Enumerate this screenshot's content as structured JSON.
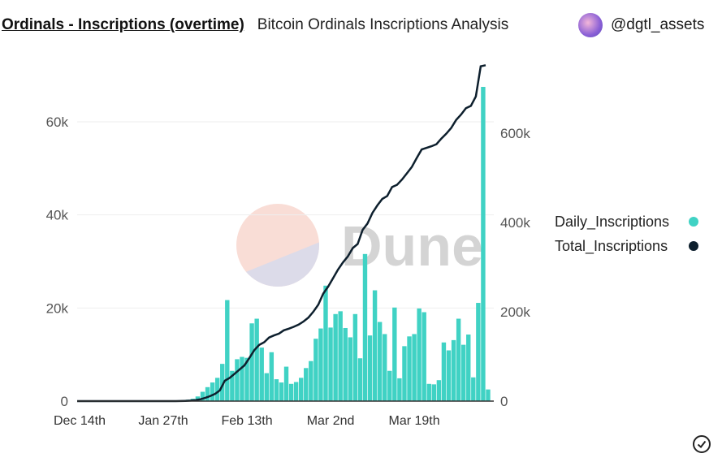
{
  "header": {
    "title": "Ordinals - Inscriptions (overtime)",
    "subtitle": "Bitcoin Ordinals Inscriptions Analysis",
    "author": "@dgtl_assets"
  },
  "watermark": "Dune",
  "colors": {
    "daily": "#40d2c4",
    "total": "#0d1f2d",
    "grid": "#eeeeee",
    "axis_text": "#555555"
  },
  "icons": {
    "done": "check-circle-icon"
  },
  "chart_data": {
    "type": "bar+line",
    "x_tick_labels": [
      {
        "label": "Dec 14th",
        "index": 0
      },
      {
        "label": "Jan 27th",
        "index": 17
      },
      {
        "label": "Feb 13th",
        "index": 34
      },
      {
        "label": "Mar 2nd",
        "index": 51
      },
      {
        "label": "Mar 19th",
        "index": 68
      }
    ],
    "y_left": {
      "ticks": [
        0,
        20000,
        40000,
        60000
      ],
      "labels": [
        "0",
        "20k",
        "40k",
        "60k"
      ],
      "range": [
        0,
        75000
      ]
    },
    "y_right": {
      "ticks": [
        0,
        200000,
        400000,
        600000
      ],
      "labels": [
        "0",
        "200k",
        "400k",
        "600k"
      ],
      "range": [
        0,
        760000
      ]
    },
    "grid": true,
    "legend_placement": "right",
    "series": [
      {
        "name": "Daily_Inscriptions",
        "type": "bar",
        "axis": "left",
        "values": [
          0,
          0,
          0,
          0,
          0,
          0,
          0,
          0,
          0,
          0,
          0,
          0,
          0,
          0,
          0,
          0,
          0,
          0,
          0,
          0,
          0,
          200,
          300,
          500,
          1000,
          2000,
          3000,
          4000,
          5000,
          8000,
          21700,
          6500,
          9000,
          9500,
          9300,
          16700,
          17700,
          11500,
          6000,
          10500,
          4700,
          4000,
          7400,
          3700,
          4100,
          5000,
          7100,
          8600,
          13400,
          15600,
          24800,
          15800,
          18700,
          19300,
          15700,
          13700,
          18700,
          9200,
          31600,
          14100,
          23800,
          17000,
          14400,
          6500,
          20100,
          4900,
          11800,
          13900,
          14400,
          19900,
          19100,
          3700,
          3600,
          4500,
          12600,
          10900,
          13100,
          17700,
          12100,
          14300,
          5100,
          21100,
          67500,
          2500
        ]
      },
      {
        "name": "Total_Inscriptions",
        "type": "line",
        "axis": "right",
        "values": [
          0,
          0,
          0,
          0,
          0,
          0,
          0,
          0,
          0,
          0,
          0,
          0,
          0,
          0,
          0,
          0,
          0,
          0,
          0,
          0,
          0,
          200,
          500,
          1000,
          2000,
          4000,
          7000,
          11000,
          16000,
          24000,
          45700,
          52200,
          61200,
          70700,
          80000,
          96700,
          114400,
          125900,
          131900,
          142400,
          147100,
          151100,
          158500,
          162200,
          166300,
          171300,
          178400,
          187000,
          200400,
          216000,
          240800,
          256600,
          275300,
          294600,
          310300,
          324000,
          342700,
          351900,
          383500,
          397600,
          421400,
          438400,
          452800,
          459300,
          479400,
          484300,
          496100,
          510000,
          524400,
          544300,
          563400,
          567100,
          570700,
          575200,
          587800,
          598700,
          611800,
          629500,
          641600,
          655900,
          661000,
          682100,
          749600,
          752100
        ]
      }
    ]
  }
}
